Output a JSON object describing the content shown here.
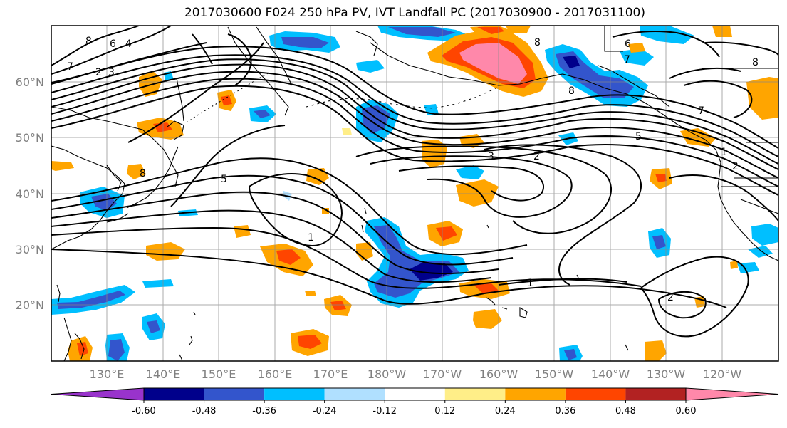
{
  "title": "2017030600 F024 250 hPa PV, IVT Landfall PC (2017030900 - 2017031100)",
  "lat_labels": [
    "60°N",
    "50°N",
    "40°N",
    "30°N",
    "20°N"
  ],
  "lon_labels": [
    "130°E",
    "140°E",
    "150°E",
    "160°E",
    "170°E",
    "180°W",
    "170°W",
    "160°W",
    "150°W",
    "140°W",
    "130°W",
    "120°W"
  ],
  "colorbar": {
    "colors": [
      "#9933cc",
      "#00008b",
      "#3355cc",
      "#00bfff",
      "#b0e0ff",
      "#ffffff",
      "#ffee88",
      "#ffa500",
      "#ff4500",
      "#b22222",
      "#ff88aa"
    ],
    "tick_labels": [
      "-0.60",
      "-0.48",
      "-0.36",
      "-0.24",
      "-0.12",
      "0.12",
      "0.24",
      "0.36",
      "0.48",
      "0.60"
    ]
  },
  "contour_labels": [
    "8",
    "6",
    "4",
    "7",
    "2",
    "3",
    "8",
    "5",
    "1",
    "1",
    "2",
    "3",
    "2",
    "5",
    "8",
    "7",
    "6",
    "8",
    "7",
    "1",
    "2",
    "8"
  ]
}
